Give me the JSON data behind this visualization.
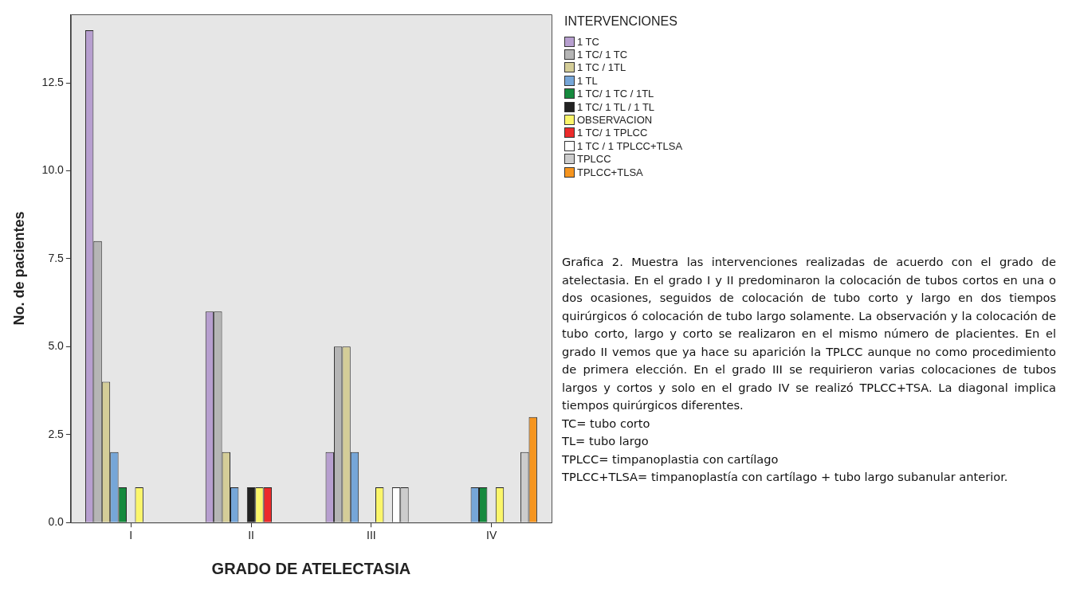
{
  "chart_data": {
    "type": "bar",
    "xlabel": "GRADO DE ATELECTASIA",
    "ylabel": "No. de pacientes",
    "legend_title": "INTERVENCIONES",
    "legend": "right",
    "grid": false,
    "categories": [
      "I",
      "II",
      "III",
      "IV"
    ],
    "ylim": [
      0,
      14.45
    ],
    "yticks": [
      {
        "value": 0,
        "label": "0.0"
      },
      {
        "value": 2.5,
        "label": "2.5"
      },
      {
        "value": 5,
        "label": "5.0"
      },
      {
        "value": 7.5,
        "label": "7.5"
      },
      {
        "value": 10,
        "label": "10.0"
      },
      {
        "value": 12.5,
        "label": "12.5"
      }
    ],
    "series": [
      {
        "name": "1 TC",
        "color": "#b79fcf",
        "values": [
          14,
          6,
          2,
          null
        ]
      },
      {
        "name": "1 TC/ 1 TC",
        "color": "#b5b5b5",
        "values": [
          8,
          6,
          5,
          null
        ]
      },
      {
        "name": "1 TC / 1TL",
        "color": "#d4cd98",
        "values": [
          4,
          2,
          5,
          null
        ]
      },
      {
        "name": "1 TL",
        "color": "#76a6d8",
        "values": [
          2,
          1,
          2,
          1
        ]
      },
      {
        "name": "1 TC/ 1 TC / 1TL",
        "color": "#168a3e",
        "values": [
          1,
          null,
          null,
          1
        ]
      },
      {
        "name": "1 TC/ 1 TL / 1 TL",
        "color": "#222222",
        "values": [
          null,
          1,
          null,
          null
        ]
      },
      {
        "name": "OBSERVACION",
        "color": "#fbf66a",
        "values": [
          1,
          1,
          1,
          1
        ]
      },
      {
        "name": "1 TC/ 1 TPLCC",
        "color": "#ec2b2b",
        "values": [
          null,
          1,
          null,
          null
        ]
      },
      {
        "name": "1 TC / 1 TPLCC+TLSA",
        "color": "#ffffff",
        "values": [
          null,
          null,
          1,
          null
        ]
      },
      {
        "name": "TPLCC",
        "color": "#cccccc",
        "values": [
          null,
          null,
          1,
          2
        ]
      },
      {
        "name": "TPLCC+TLSA",
        "color": "#f6951f",
        "values": [
          null,
          null,
          null,
          3
        ]
      }
    ],
    "annotations": [
      "Grafica 2. Muestra las intervenciones realizadas de acuerdo con el grado de atelectasia. En el grado I y II predominaron la colocación de tubos cortos en una o dos ocasiones, seguidos de colocación de tubo corto y largo en dos tiempos quirúrgicos ó colocación de tubo largo solamente. La observación y la colocación de tubo corto, largo y corto se realizaron en el mismo número de placientes. En el grado II vemos que ya hace su aparición la TPLCC aunque no como procedimiento de primera elección. En el grado III se requirieron varias colocaciones de tubos largos y cortos y solo en el grado IV se realizó TPLCC+TSA. La diagonal implica tiempos quirúrgicos diferentes.",
      "TC= tubo corto",
      "TL= tubo largo",
      "TPLCC= timpanoplastia con cartílago",
      "TPLCC+TLSA= timpanoplastía con cartílago + tubo largo subanular anterior."
    ]
  }
}
